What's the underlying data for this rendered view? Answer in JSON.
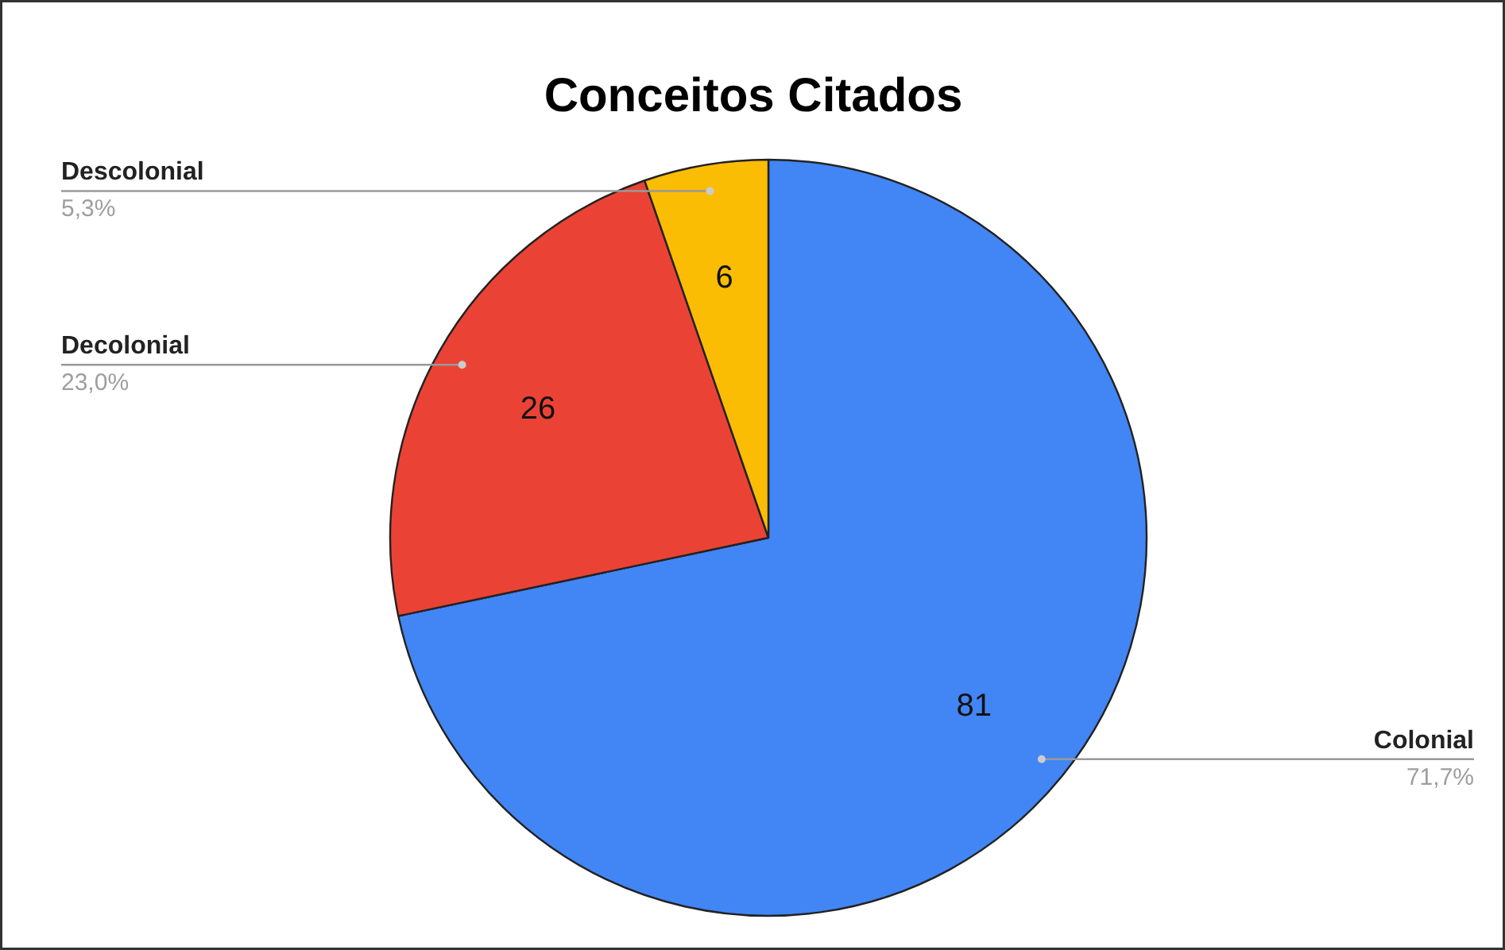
{
  "chart_data": {
    "type": "pie",
    "title": "Conceitos Citados",
    "categories": [
      "Colonial",
      "Decolonial",
      "Descolonial"
    ],
    "values": [
      81,
      26,
      6
    ],
    "colors": [
      "#4285f4",
      "#ea4335",
      "#fbbc04"
    ],
    "value_labels": [
      "81",
      "26",
      "6"
    ],
    "annotations": [
      {
        "text": "71,7%",
        "x": "Colonial"
      },
      {
        "text": "23,0%",
        "x": "Decolonial"
      },
      {
        "text": "5,3%",
        "x": "Descolonial"
      }
    ]
  }
}
